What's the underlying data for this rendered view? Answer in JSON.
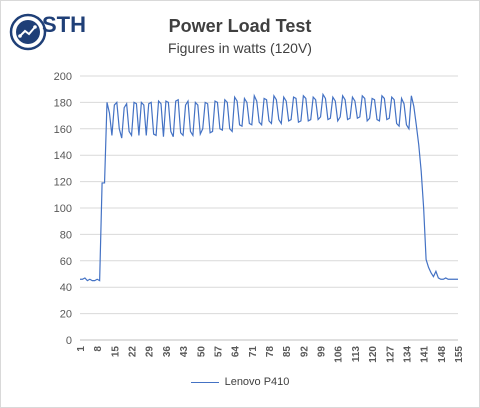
{
  "logo": {
    "text": "STH"
  },
  "chart_data": {
    "type": "line",
    "title": "Power Load Test",
    "subtitle": "Figures in watts (120V)",
    "xlabel": "",
    "ylabel": "",
    "ylim": [
      0,
      200
    ],
    "yticks": [
      0,
      20,
      40,
      60,
      80,
      100,
      120,
      140,
      160,
      180,
      200
    ],
    "xtick_labels": [
      1,
      8,
      15,
      22,
      29,
      36,
      43,
      50,
      57,
      64,
      71,
      78,
      85,
      92,
      99,
      106,
      113,
      120,
      127,
      134,
      141,
      148,
      155
    ],
    "grid": "horizontal",
    "legend_position": "bottom",
    "color": "#4472c4",
    "series": [
      {
        "name": "Lenovo P410",
        "x": [
          1,
          2,
          3,
          4,
          5,
          6,
          7,
          8,
          9,
          10,
          11,
          12,
          13,
          14,
          15,
          16,
          17,
          18,
          19,
          20,
          21,
          22,
          23,
          24,
          25,
          26,
          27,
          28,
          29,
          30,
          31,
          32,
          33,
          34,
          35,
          36,
          37,
          38,
          39,
          40,
          41,
          42,
          43,
          44,
          45,
          46,
          47,
          48,
          49,
          50,
          51,
          52,
          53,
          54,
          55,
          56,
          57,
          58,
          59,
          60,
          61,
          62,
          63,
          64,
          65,
          66,
          67,
          68,
          69,
          70,
          71,
          72,
          73,
          74,
          75,
          76,
          77,
          78,
          79,
          80,
          81,
          82,
          83,
          84,
          85,
          86,
          87,
          88,
          89,
          90,
          91,
          92,
          93,
          94,
          95,
          96,
          97,
          98,
          99,
          100,
          101,
          102,
          103,
          104,
          105,
          106,
          107,
          108,
          109,
          110,
          111,
          112,
          113,
          114,
          115,
          116,
          117,
          118,
          119,
          120,
          121,
          122,
          123,
          124,
          125,
          126,
          127,
          128,
          129,
          130,
          131,
          132,
          133,
          134,
          135,
          136,
          137,
          138,
          139,
          140,
          141,
          142,
          143,
          144,
          145,
          146,
          147,
          148,
          149,
          150,
          151,
          152,
          153,
          154,
          155
        ],
        "values": [
          46,
          46,
          47,
          45,
          46,
          45,
          45,
          46,
          45,
          119,
          119,
          180,
          172,
          155,
          178,
          180,
          160,
          153,
          176,
          179,
          158,
          155,
          180,
          179,
          155,
          180,
          178,
          155,
          179,
          180,
          156,
          155,
          181,
          179,
          154,
          181,
          180,
          158,
          154,
          181,
          182,
          157,
          155,
          178,
          181,
          158,
          155,
          180,
          178,
          156,
          160,
          180,
          179,
          157,
          158,
          181,
          180,
          160,
          159,
          182,
          180,
          160,
          158,
          184,
          181,
          163,
          162,
          183,
          180,
          164,
          163,
          185,
          181,
          165,
          163,
          183,
          182,
          166,
          164,
          185,
          182,
          167,
          164,
          184,
          181,
          166,
          167,
          184,
          183,
          165,
          166,
          185,
          183,
          166,
          167,
          184,
          182,
          167,
          169,
          186,
          183,
          167,
          168,
          184,
          181,
          166,
          169,
          185,
          182,
          167,
          168,
          184,
          181,
          168,
          169,
          185,
          183,
          166,
          168,
          183,
          182,
          167,
          166,
          185,
          183,
          167,
          168,
          184,
          182,
          164,
          162,
          183,
          179,
          163,
          160,
          185,
          177,
          163,
          148,
          128,
          100,
          61,
          55,
          51,
          48,
          52,
          47,
          46,
          46,
          47,
          46,
          46,
          46,
          46,
          46
        ]
      }
    ]
  }
}
